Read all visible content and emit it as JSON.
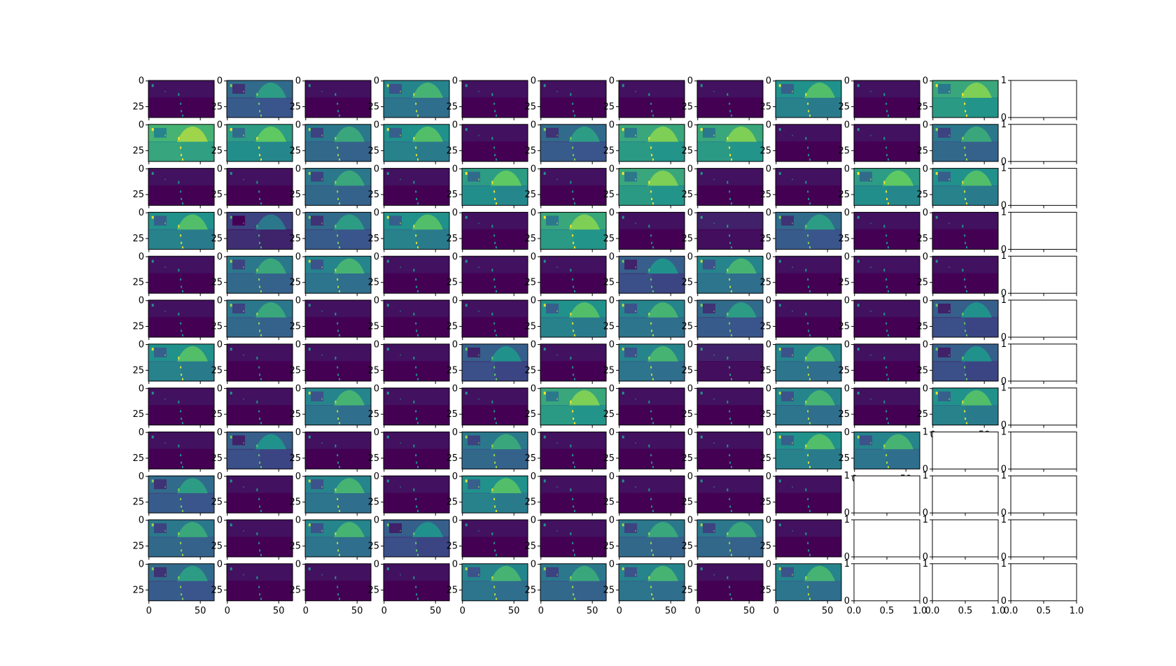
{
  "chart_data": {
    "type": "heatmap",
    "title": "",
    "layout_description": "12 x 12 grid of feature-map subplots (matplotlib imshow, viridis colormap)",
    "grid_rows": 12,
    "grid_cols": 12,
    "image_extent": {
      "width": 64,
      "height": 36
    },
    "colormap": [
      "#440154",
      "#3b528b",
      "#21918c",
      "#5ec962",
      "#fde725"
    ],
    "image_axes": {
      "xticks": [
        0,
        50
      ],
      "yticks": [
        0,
        25
      ],
      "xtick_labels": [
        "0",
        "50"
      ],
      "ytick_labels": [
        "0",
        "25"
      ]
    },
    "empty_axes": {
      "xlim": [
        0,
        1
      ],
      "ylim": [
        0,
        1
      ],
      "xticks": [
        0,
        0.5,
        1
      ],
      "xtick_labels": [
        "0.0",
        "0.5",
        "1.0"
      ],
      "ytick_labels": [
        "0",
        "1"
      ]
    },
    "panel_levels": [
      [
        0.05,
        0.35,
        0.05,
        0.45,
        0.05,
        0.05,
        0.05,
        0.05,
        0.5,
        0.05,
        0.6,
        null
      ],
      [
        0.65,
        0.55,
        0.4,
        0.5,
        0.05,
        0.35,
        0.6,
        0.6,
        0.05,
        0.05,
        0.4,
        null
      ],
      [
        0.05,
        0.05,
        0.4,
        0.05,
        0.55,
        0.05,
        0.6,
        0.05,
        0.05,
        0.55,
        0.5,
        null
      ],
      [
        0.5,
        0.2,
        0.35,
        0.5,
        0.05,
        0.6,
        0.05,
        0.1,
        0.35,
        0.05,
        0.05,
        null
      ],
      [
        0.05,
        0.4,
        0.45,
        0.05,
        0.05,
        0.05,
        0.3,
        0.45,
        0.05,
        0.05,
        0.05,
        null
      ],
      [
        0.05,
        0.4,
        0.05,
        0.05,
        0.05,
        0.5,
        0.45,
        0.35,
        0.05,
        0.05,
        0.3,
        null
      ],
      [
        0.5,
        0.05,
        0.05,
        0.05,
        0.3,
        0.05,
        0.45,
        0.1,
        0.45,
        0.05,
        0.3,
        null
      ],
      [
        0.05,
        0.05,
        0.45,
        0.05,
        0.05,
        0.6,
        0.05,
        0.05,
        0.45,
        0.05,
        0.5,
        null
      ],
      [
        0.05,
        0.3,
        0.05,
        0.05,
        0.4,
        0.05,
        0.05,
        0.05,
        0.5,
        0.45,
        null,
        null
      ],
      [
        0.35,
        0.05,
        0.45,
        0.05,
        0.5,
        0.05,
        0.05,
        0.05,
        0.05,
        null,
        null,
        null
      ],
      [
        0.4,
        0.05,
        0.45,
        0.3,
        0.05,
        0.05,
        0.4,
        0.4,
        0.05,
        null,
        null,
        null
      ],
      [
        0.35,
        0.05,
        0.05,
        0.05,
        0.45,
        0.4,
        0.45,
        0.05,
        0.45,
        null,
        null,
        null
      ]
    ]
  }
}
